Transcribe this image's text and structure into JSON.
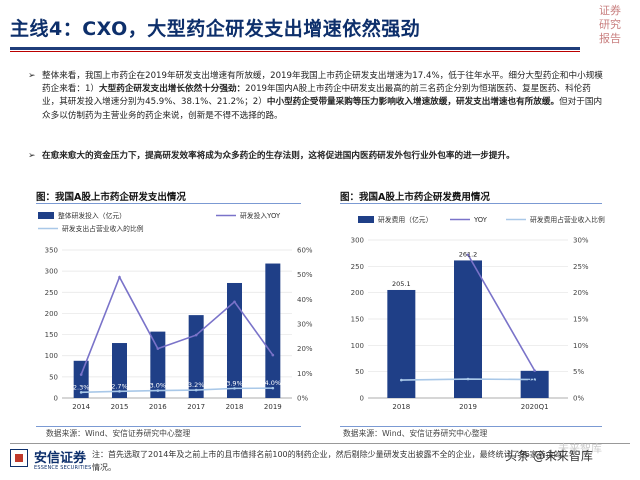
{
  "header": {
    "title": "主线4：CXO，大型药企研发支出增速依然强劲",
    "stamp": [
      "证券",
      "研究",
      "报告"
    ]
  },
  "body": {
    "para1_a": "整体来看，我国上市药企在2019年研发支出增速有所放缓，2019年我国上市药企研发支出增速为17.4%，低于往年水平。细分大型药企和中小规模药企来看：1）",
    "para1_b": "大型药企研发支出增长依然十分强劲：",
    "para1_c": "2019年国内A股上市药企中研发支出最高的前三名药企分别为恒瑞医药、复星医药、科伦药业，其研发投入增速分别为45.9%、38.1%、21.2%；2）",
    "para1_d": "中小型药企受带量采购等压力影响收入增速放缓，研发支出增速也有所放缓。",
    "para1_e": "但对于国内众多以仿制药为主营业务的药企来说，创新是不得不选择的路。",
    "para2": "在愈来愈大的资金压力下，提高研发效率将成为众多药企的生存法则，这将促进国内医药研发外包行业外包率的进一步提升。"
  },
  "chart_left": {
    "caption": "图：我国A股上市药企研发支出情况",
    "source": "数据来源：Wind、安信证券研究中心整理"
  },
  "chart_right": {
    "caption": "图：我国A股上市药企研发费用情况",
    "source": "数据来源：Wind、安信证券研究中心整理"
  },
  "footer": {
    "note": "注：首先选取了2014年及之前上市的且市值排名前100的制药企业，然后剔除少量研发支出披露不全的企业，最终统计了96家药企的情况。",
    "logo_cn": "安信证券",
    "logo_en": "ESSENCE SECURITIES",
    "watermark": "头条 @未来智库",
    "watermark2": "未来智库"
  },
  "chart_data": [
    {
      "type": "bar",
      "title": "",
      "categories": [
        "2014",
        "2015",
        "2016",
        "2017",
        "2018",
        "2019"
      ],
      "series": [
        {
          "name": "整体研发投入（亿元）",
          "type": "bar",
          "axis": "left",
          "values": [
            88,
            130,
            157,
            196,
            272,
            318
          ]
        },
        {
          "name": "研发投入YOY",
          "type": "line",
          "axis": "right",
          "values": [
            0.095,
            0.49,
            0.2,
            0.255,
            0.39,
            0.174
          ]
        },
        {
          "name": "研发支出占营业收入的比例",
          "type": "line",
          "axis": "right",
          "values": [
            0.023,
            0.027,
            0.03,
            0.032,
            0.039,
            0.04
          ]
        }
      ],
      "data_labels": [
        "2.3%",
        "2.7%",
        "3.0%",
        "3.2%",
        "3.9%",
        "4.0%"
      ],
      "ylim_left": [
        0,
        350
      ],
      "left_ticks": [
        "0",
        "50",
        "100",
        "150",
        "200",
        "250",
        "300",
        "350"
      ],
      "ylim_right": [
        0,
        0.6
      ],
      "right_ticks": [
        "0%",
        "10%",
        "20%",
        "30%",
        "40%",
        "50%",
        "60%"
      ],
      "legend_position": "top",
      "colors": {
        "bar": "#1f3f87",
        "yoy": "#7a73c9",
        "ratio": "#a9c8e8"
      }
    },
    {
      "type": "bar",
      "title": "",
      "categories": [
        "2018",
        "2019",
        "2020Q1"
      ],
      "series": [
        {
          "name": "研发费用（亿元）",
          "type": "bar",
          "axis": "left",
          "values": [
            205.1,
            261.2,
            51.6
          ]
        },
        {
          "name": "YOY",
          "type": "line",
          "axis": "right",
          "values": [
            null,
            0.272,
            0.052
          ]
        },
        {
          "name": "研发费用占营业收入比例",
          "type": "line",
          "axis": "right",
          "values": [
            0.034,
            0.036,
            0.035
          ]
        }
      ],
      "data_labels": [
        "205.1",
        "261.2",
        "51.6"
      ],
      "ylim_left": [
        0,
        300
      ],
      "left_ticks": [
        "0",
        "50",
        "100",
        "150",
        "200",
        "250",
        "300"
      ],
      "ylim_right": [
        0,
        0.3
      ],
      "right_ticks": [
        "0%",
        "5%",
        "10%",
        "15%",
        "20%",
        "25%",
        "30%"
      ],
      "legend_position": "top",
      "colors": {
        "bar": "#1f3f87",
        "yoy": "#7a73c9",
        "ratio": "#a9c8e8"
      }
    }
  ]
}
